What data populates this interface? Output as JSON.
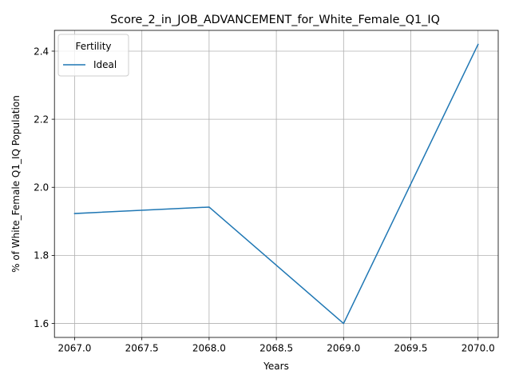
{
  "chart_data": {
    "type": "line",
    "title": "Score_2_in_JOB_ADVANCEMENT_for_White_Female_Q1_IQ",
    "xlabel": "Years",
    "ylabel": "% of White_Female Q1_IQ Population",
    "xlim": [
      2066.85,
      2070.15
    ],
    "ylim": [
      1.559,
      2.461
    ],
    "xticks": [
      "2067.0",
      "2067.5",
      "2068.0",
      "2068.5",
      "2069.0",
      "2069.5",
      "2070.0"
    ],
    "yticks": [
      "1.6",
      "1.8",
      "2.0",
      "2.2",
      "2.4"
    ],
    "grid": true,
    "legend": {
      "title": "Fertility",
      "position": "top-left"
    },
    "series": [
      {
        "name": "Ideal",
        "color": "#1f77b4",
        "x": [
          2067,
          2068,
          2069,
          2070
        ],
        "y": [
          1.923,
          1.942,
          1.6,
          2.42
        ]
      }
    ]
  }
}
